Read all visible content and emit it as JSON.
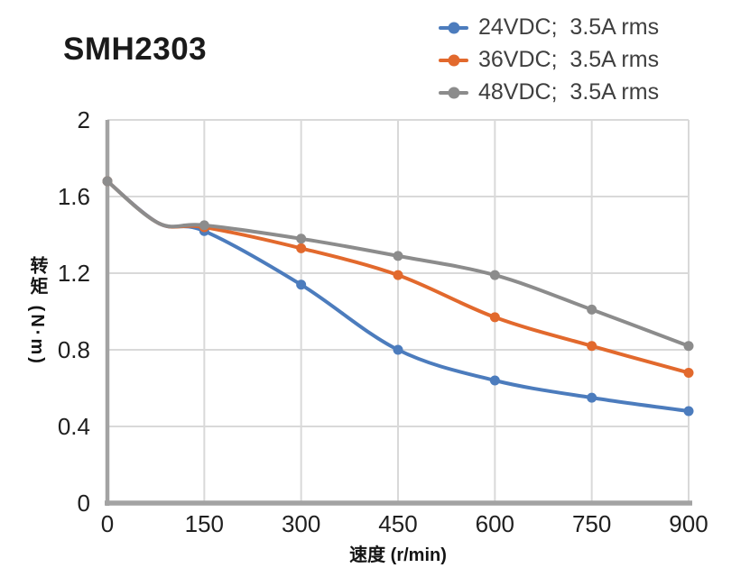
{
  "page": {
    "title": "SMH2303"
  },
  "chart_data": {
    "type": "line",
    "title": "SMH2303",
    "xlabel": "速度 (r/min)",
    "ylabel": "转矩 (N·m)",
    "xlim": [
      0,
      900
    ],
    "ylim": [
      0,
      2
    ],
    "x_ticks": [
      0,
      150,
      300,
      450,
      600,
      750,
      900
    ],
    "y_ticks": [
      0,
      0.4,
      0.8,
      1.2,
      1.6,
      2
    ],
    "grid": true,
    "legend_position": "top-right",
    "x": [
      0,
      150,
      300,
      450,
      600,
      750,
      900
    ],
    "series": [
      {
        "name": "24VDC;  3.5A rms",
        "color": "#4C7CBD",
        "values": [
          1.68,
          1.42,
          1.14,
          0.8,
          0.64,
          0.55,
          0.48
        ]
      },
      {
        "name": "36VDC;  3.5A rms",
        "color": "#E2692D",
        "values": [
          1.68,
          1.44,
          1.33,
          1.19,
          0.97,
          0.82,
          0.68
        ]
      },
      {
        "name": "48VDC;  3.5A rms",
        "color": "#8C8C8C",
        "values": [
          1.68,
          1.45,
          1.38,
          1.29,
          1.19,
          1.01,
          0.82
        ]
      }
    ],
    "curve_lead_in": {
      "x": 80,
      "y": 1.46
    },
    "colors": {
      "gridline": "#D9D9D9",
      "axis": "#A3A3A3",
      "tick_text": "#1F1F1F",
      "legend_text": "#3F3F3F",
      "title_text": "#1A1A1A"
    }
  }
}
